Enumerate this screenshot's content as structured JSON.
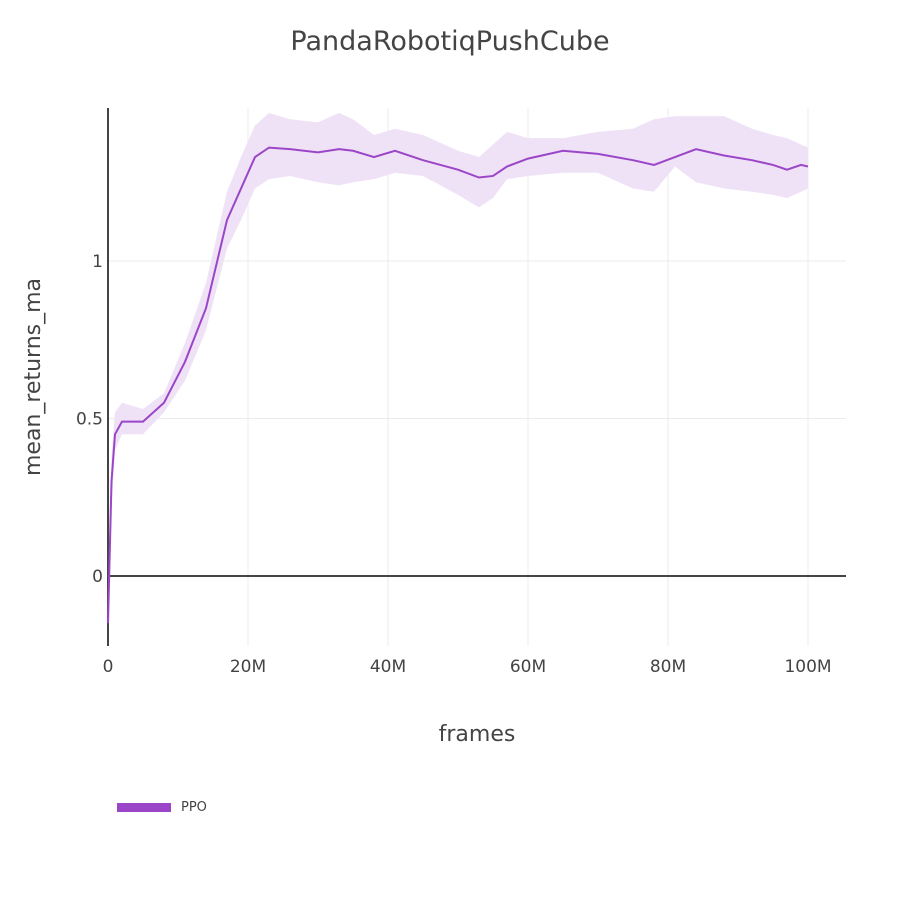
{
  "title": "PandaRobotiqPushCube",
  "legend": [
    {
      "label": "PPO",
      "color": "#9b46c8"
    }
  ],
  "chart_data": {
    "type": "line",
    "title": "PandaRobotiqPushCube",
    "xlabel": "frames",
    "ylabel": "mean_returns_ma",
    "x_ticks": [
      "0",
      "20M",
      "40M",
      "60M",
      "80M",
      "100M"
    ],
    "y_ticks": [
      "0",
      "0.5",
      "1"
    ],
    "xlim": [
      0,
      105000000
    ],
    "ylim": [
      -0.22,
      1.49
    ],
    "grid": true,
    "legend_position": "bottom-left",
    "series": [
      {
        "name": "PPO",
        "color": "#9b46c8",
        "band_color": "#efe2f6",
        "x_millions": [
          0,
          0.5,
          1,
          2,
          5,
          8,
          11,
          14,
          17,
          19,
          21,
          23,
          26,
          30,
          33,
          35,
          38,
          41,
          45,
          50,
          53,
          55,
          57,
          60,
          65,
          70,
          75,
          78,
          81,
          84,
          88,
          92,
          95,
          97,
          99,
          100
        ],
        "mean": [
          -0.15,
          0.3,
          0.45,
          0.49,
          0.49,
          0.55,
          0.68,
          0.85,
          1.13,
          1.23,
          1.33,
          1.36,
          1.355,
          1.345,
          1.355,
          1.35,
          1.33,
          1.35,
          1.32,
          1.29,
          1.265,
          1.27,
          1.3,
          1.325,
          1.35,
          1.34,
          1.32,
          1.305,
          1.33,
          1.355,
          1.335,
          1.32,
          1.305,
          1.29,
          1.305,
          1.3
        ],
        "upper": [
          -0.12,
          0.38,
          0.52,
          0.55,
          0.53,
          0.58,
          0.74,
          0.93,
          1.22,
          1.33,
          1.43,
          1.47,
          1.45,
          1.44,
          1.47,
          1.45,
          1.4,
          1.42,
          1.4,
          1.35,
          1.33,
          1.37,
          1.41,
          1.39,
          1.39,
          1.41,
          1.42,
          1.45,
          1.46,
          1.46,
          1.46,
          1.42,
          1.4,
          1.39,
          1.37,
          1.36
        ],
        "lower": [
          -0.18,
          0.22,
          0.4,
          0.45,
          0.45,
          0.52,
          0.62,
          0.78,
          1.04,
          1.13,
          1.23,
          1.26,
          1.27,
          1.25,
          1.24,
          1.25,
          1.26,
          1.28,
          1.27,
          1.21,
          1.17,
          1.2,
          1.26,
          1.27,
          1.28,
          1.28,
          1.23,
          1.22,
          1.3,
          1.25,
          1.23,
          1.22,
          1.21,
          1.2,
          1.22,
          1.23
        ]
      }
    ]
  }
}
